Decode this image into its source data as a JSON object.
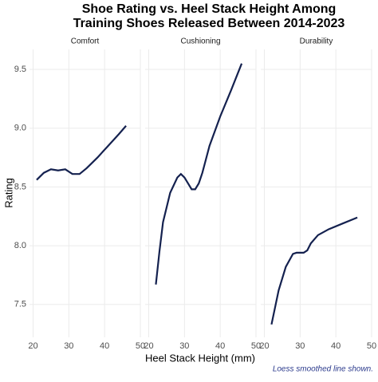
{
  "title": "Shoe Rating vs. Heel Stack Height Among",
  "subtitle": "Training Shoes Released Between 2014-2023",
  "xlabel": "Heel Stack Height (mm)",
  "ylabel": "Rating",
  "caption": "Loess smoothed line shown.",
  "ylim": [
    7.22,
    9.67
  ],
  "yticks": [
    7.5,
    8.0,
    8.5,
    9.0,
    9.5
  ],
  "ytick_labels": [
    "7.5",
    "8.0",
    "8.5",
    "9.0",
    "9.5"
  ],
  "color": "#14214f",
  "grid": true,
  "chart_data": [
    {
      "type": "line",
      "title": "Comfort",
      "x": [
        21,
        23,
        25,
        27,
        29,
        31,
        33,
        35,
        38,
        41,
        44,
        46
      ],
      "values": [
        8.56,
        8.62,
        8.65,
        8.64,
        8.65,
        8.61,
        8.61,
        8.66,
        8.75,
        8.85,
        8.95,
        9.02
      ],
      "xlim": [
        19,
        50
      ],
      "xticks": [
        20,
        30,
        40,
        50
      ]
    },
    {
      "type": "line",
      "title": "Cushioning",
      "x": [
        22,
        23,
        24,
        26,
        28,
        29,
        30,
        31,
        32,
        33,
        34,
        35,
        37,
        40,
        43,
        46
      ],
      "values": [
        7.67,
        7.95,
        8.2,
        8.45,
        8.58,
        8.61,
        8.58,
        8.53,
        8.48,
        8.48,
        8.53,
        8.62,
        8.85,
        9.1,
        9.32,
        9.55
      ],
      "xlim": [
        19,
        50
      ],
      "xticks": [
        20,
        30,
        40,
        50
      ]
    },
    {
      "type": "line",
      "title": "Durability",
      "x": [
        22,
        24,
        26,
        28,
        29,
        31,
        32,
        33,
        35,
        38,
        42,
        46
      ],
      "values": [
        7.33,
        7.62,
        7.82,
        7.93,
        7.94,
        7.94,
        7.96,
        8.02,
        8.09,
        8.14,
        8.19,
        8.24
      ],
      "xlim": [
        19,
        50
      ],
      "xticks": [
        20,
        30,
        40,
        50
      ]
    }
  ]
}
